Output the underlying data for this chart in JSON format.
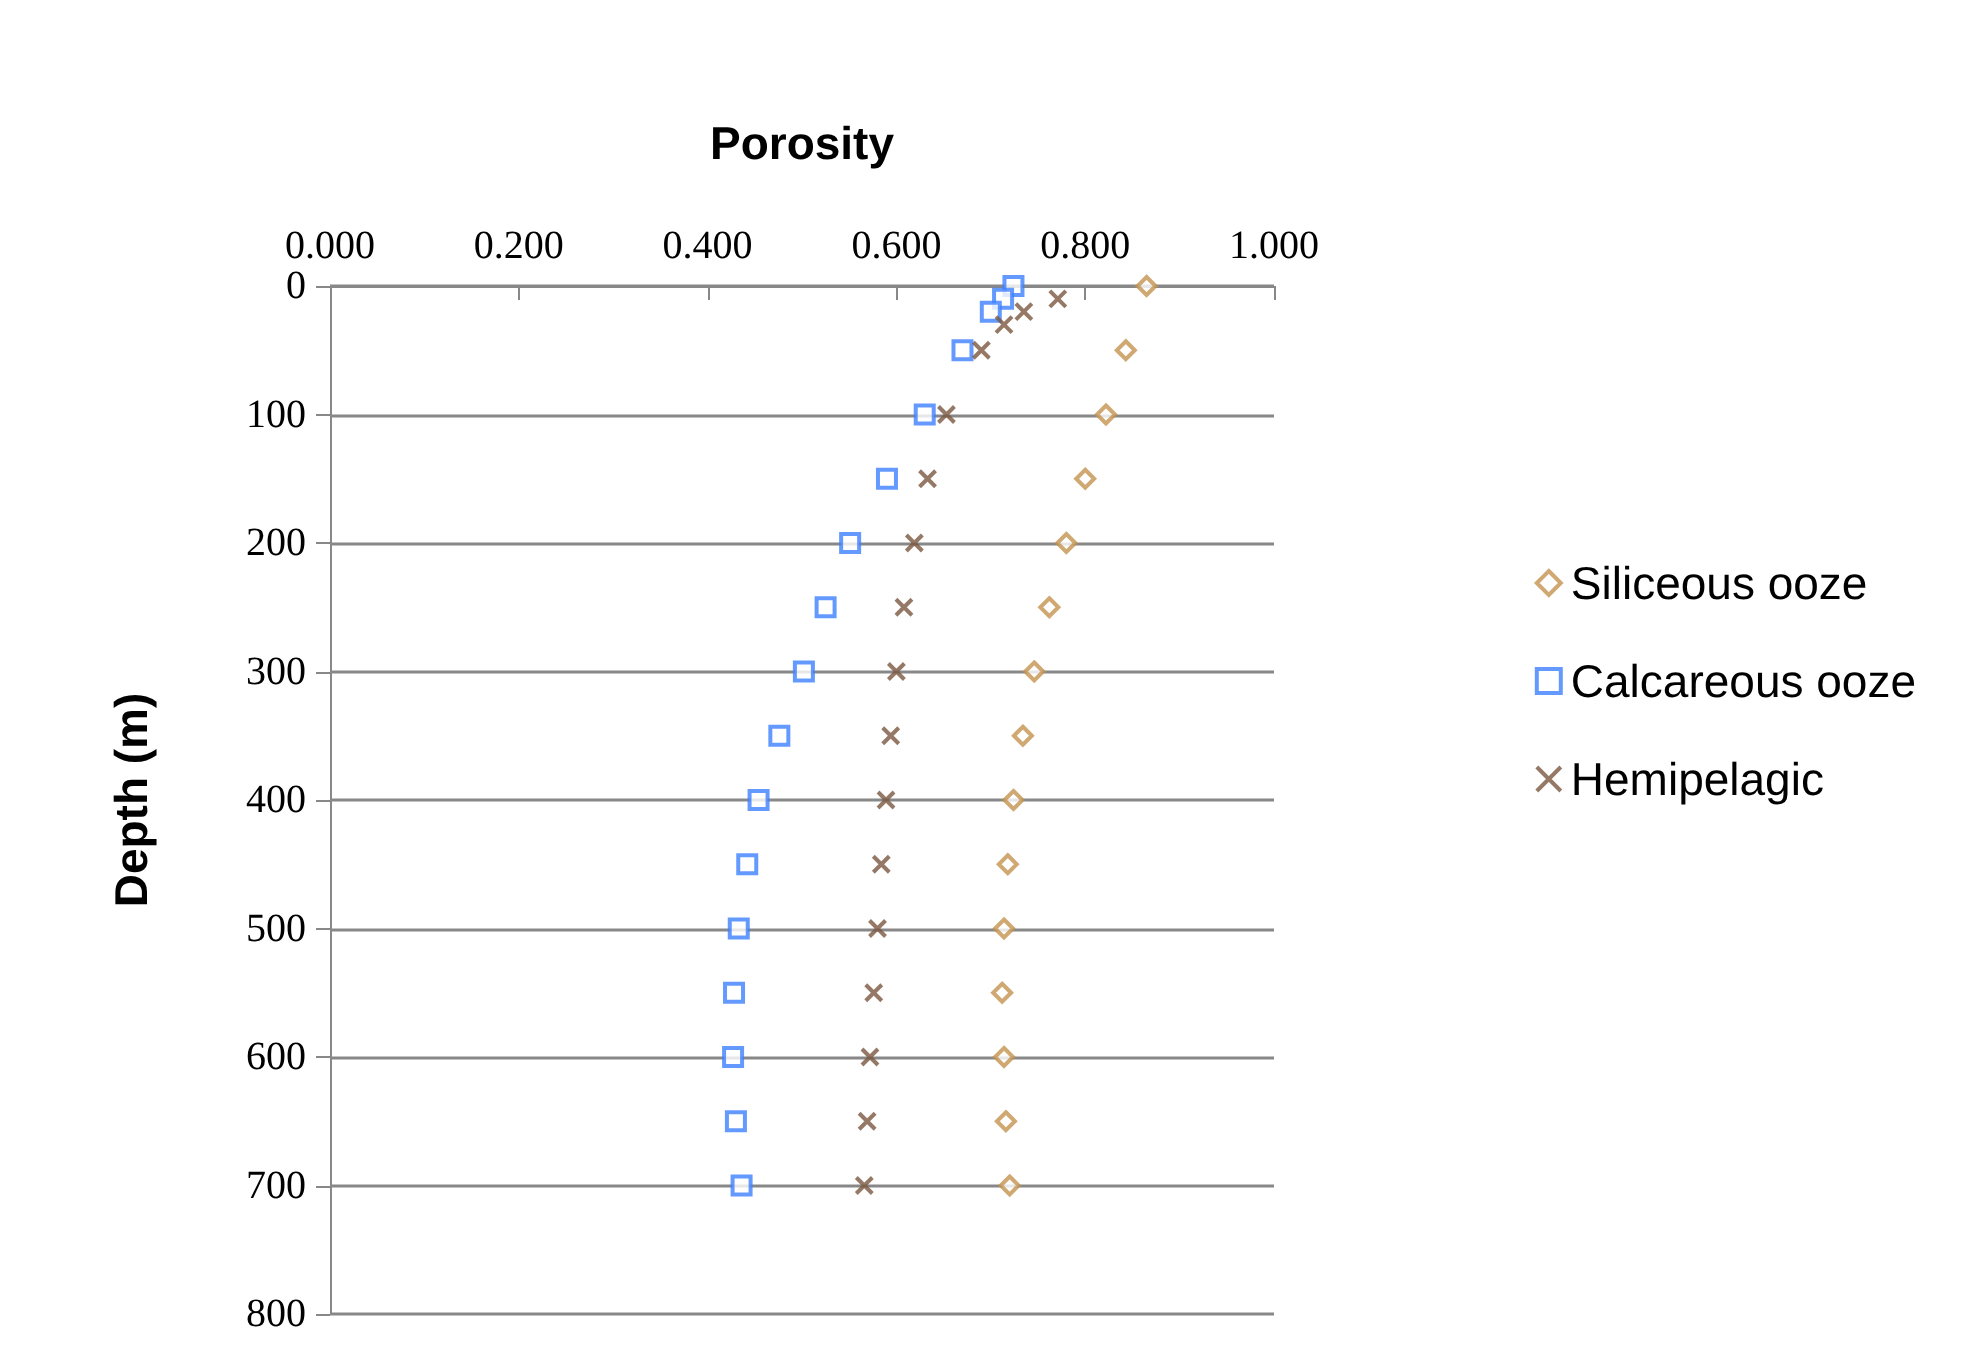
{
  "chart_data": {
    "type": "scatter",
    "xlabel": "Porosity",
    "ylabel": "Depth (m)",
    "xlim": [
      0,
      1
    ],
    "xticks": [
      {
        "value": 0,
        "label": "0.000"
      },
      {
        "value": 0.2,
        "label": "0.200"
      },
      {
        "value": 0.4,
        "label": "0.400"
      },
      {
        "value": 0.6,
        "label": "0.600"
      },
      {
        "value": 0.8,
        "label": "0.800"
      },
      {
        "value": 1,
        "label": "1.000"
      }
    ],
    "ylim": [
      800,
      0
    ],
    "yticks": [
      0,
      100,
      200,
      300,
      400,
      500,
      600,
      700,
      800
    ],
    "grid": "y",
    "legend": "right",
    "series": [
      {
        "name": "Siliceous ooze",
        "color": "#c4924f",
        "marker": "diamond",
        "x": [
          0.865,
          0.843,
          0.822,
          0.8,
          0.78,
          0.762,
          0.746,
          0.734,
          0.724,
          0.718,
          0.714,
          0.712,
          0.714,
          0.716,
          0.72
        ],
        "values": [
          0,
          50,
          100,
          150,
          200,
          250,
          300,
          350,
          400,
          450,
          500,
          550,
          600,
          650,
          700
        ]
      },
      {
        "name": "Calcareous ooze",
        "color": "#3d7fff",
        "marker": "square",
        "x": [
          0.724,
          0.713,
          0.7,
          0.67,
          0.63,
          0.59,
          0.551,
          0.525,
          0.502,
          0.476,
          0.454,
          0.442,
          0.433,
          0.428,
          0.427,
          0.43,
          0.436
        ],
        "values": [
          0,
          10,
          20,
          50,
          100,
          150,
          200,
          250,
          300,
          350,
          400,
          450,
          500,
          550,
          600,
          650,
          700
        ]
      },
      {
        "name": "Hemipelagic",
        "color": "#7a5840",
        "marker": "cross",
        "x": [
          0.771,
          0.735,
          0.714,
          0.69,
          0.653,
          0.633,
          0.619,
          0.608,
          0.6,
          0.594,
          0.589,
          0.584,
          0.58,
          0.576,
          0.572,
          0.569,
          0.566
        ],
        "values": [
          10,
          20,
          30,
          50,
          100,
          150,
          200,
          250,
          300,
          350,
          400,
          450,
          500,
          550,
          600,
          650,
          700
        ]
      }
    ]
  }
}
